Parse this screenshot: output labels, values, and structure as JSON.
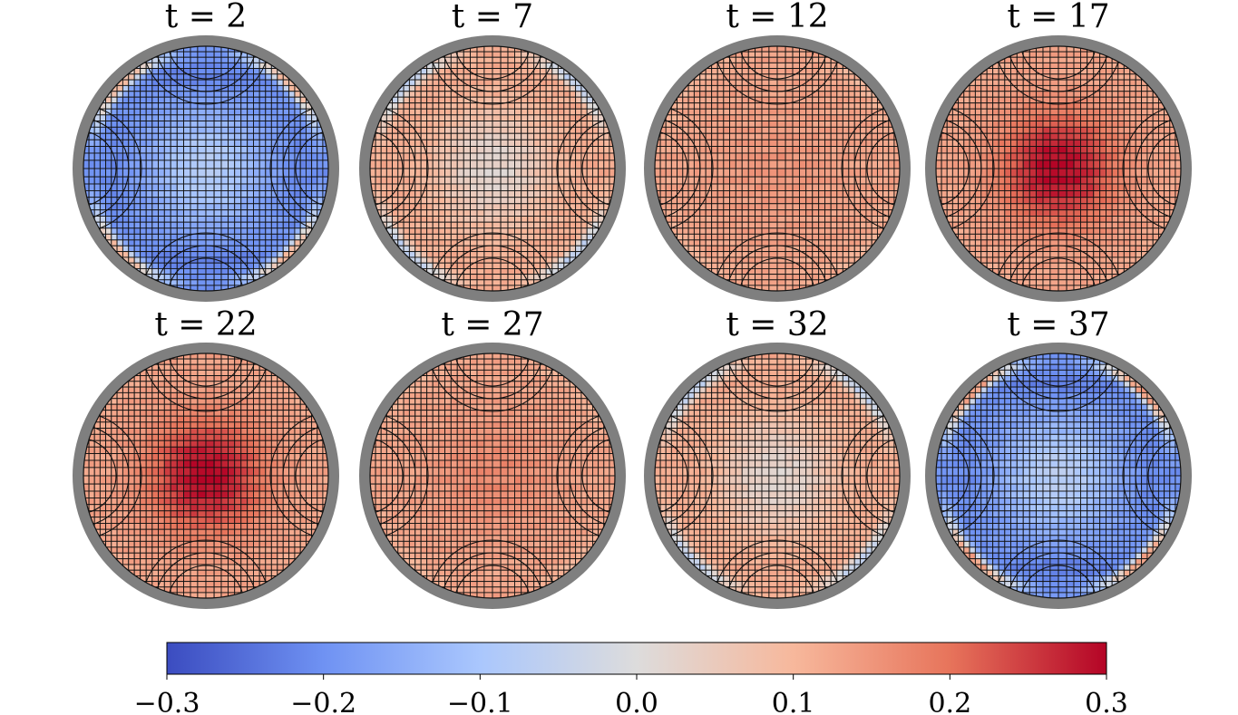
{
  "chart_data": {
    "type": "heatmap",
    "description_free": true,
    "panels": [
      {
        "title": "t = 2",
        "t": 2,
        "center": -0.08,
        "rim": -0.2,
        "pole_band": -0.25,
        "corner": 0.15
      },
      {
        "title": "t = 7",
        "t": 7,
        "center": 0.02,
        "rim": 0.12,
        "pole_band": 0.12,
        "corner": -0.08
      },
      {
        "title": "t = 12",
        "t": 12,
        "center": 0.15,
        "rim": 0.13,
        "pole_band": 0.12,
        "corner": 0.1
      },
      {
        "title": "t = 17",
        "t": 17,
        "center": 0.3,
        "rim": 0.13,
        "pole_band": 0.12,
        "corner": 0.12
      },
      {
        "title": "t = 22",
        "t": 22,
        "center": 0.3,
        "rim": 0.13,
        "pole_band": 0.12,
        "corner": 0.12
      },
      {
        "title": "t = 27",
        "t": 27,
        "center": 0.17,
        "rim": 0.13,
        "pole_band": 0.12,
        "corner": 0.1
      },
      {
        "title": "t = 32",
        "t": 32,
        "center": 0.02,
        "rim": 0.12,
        "pole_band": 0.12,
        "corner": -0.08
      },
      {
        "title": "t = 37",
        "t": 37,
        "center": -0.07,
        "rim": -0.2,
        "pole_band": -0.25,
        "corner": 0.2
      }
    ],
    "colorbar": {
      "min": -0.3,
      "max": 0.3,
      "ticks": [
        -0.3,
        -0.2,
        -0.1,
        0.0,
        0.1,
        0.2,
        0.3
      ],
      "tick_labels": [
        "−0.3",
        "−0.2",
        "−0.1",
        "0.0",
        "0.1",
        "0.2",
        "0.3"
      ],
      "colormap": "coolwarm",
      "stops": [
        "#3b4cc0",
        "#6f92f3",
        "#aac7fd",
        "#dddcdc",
        "#f7b89c",
        "#e7745b",
        "#b40426"
      ]
    }
  }
}
